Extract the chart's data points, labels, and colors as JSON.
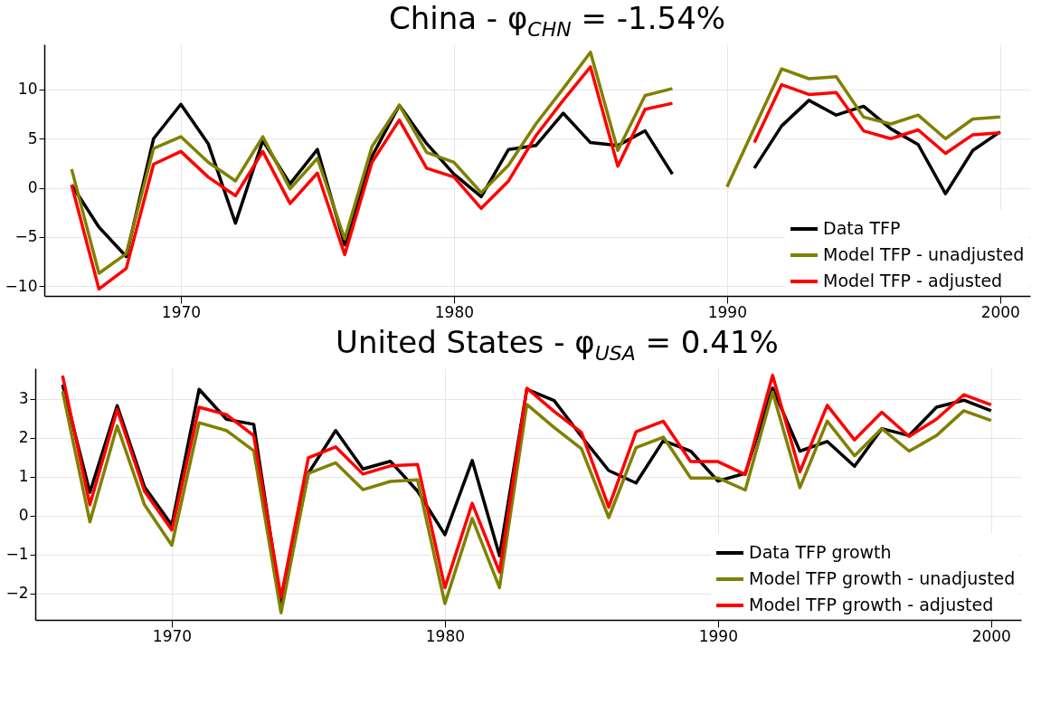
{
  "chart_data": [
    {
      "type": "line",
      "title": "China - φ$_{CHN}$ = -1.54%",
      "x": [
        1966,
        1967,
        1968,
        1969,
        1970,
        1971,
        1972,
        1973,
        1974,
        1975,
        1976,
        1977,
        1978,
        1979,
        1980,
        1981,
        1982,
        1983,
        1984,
        1985,
        1986,
        1987,
        1988,
        1989,
        1990,
        1991,
        1992,
        1993,
        1994,
        1995,
        1996,
        1997,
        1998,
        1999,
        2000
      ],
      "series": [
        {
          "name": "Data TFP",
          "color": "#000000",
          "values": [
            0.3,
            -4.0,
            -7.0,
            5.0,
            8.5,
            4.5,
            -3.6,
            4.8,
            0.4,
            3.9,
            -5.8,
            3.2,
            8.4,
            4.5,
            1.4,
            -0.9,
            3.9,
            4.3,
            7.6,
            4.6,
            4.3,
            5.8,
            1.4,
            null,
            null,
            2.0,
            6.3,
            8.9,
            7.4,
            8.3,
            6.0,
            4.4,
            -0.6,
            3.8,
            5.7
          ]
        },
        {
          "name": "Model TFP - unadjusted",
          "color": "#808000",
          "values": [
            1.9,
            -8.7,
            -6.7,
            4.0,
            5.2,
            2.6,
            0.7,
            5.2,
            -0.1,
            3.0,
            -5.2,
            4.2,
            8.4,
            3.6,
            2.6,
            -0.5,
            2.3,
            6.5,
            10.1,
            13.8,
            3.8,
            9.4,
            10.1,
            null,
            0.1,
            6.1,
            12.1,
            11.1,
            11.3,
            7.2,
            6.5,
            7.4,
            5.0,
            7.0,
            7.2
          ]
        },
        {
          "name": "Model TFP - adjusted",
          "color": "#ff0000",
          "values": [
            0.3,
            -10.3,
            -8.2,
            2.4,
            3.7,
            1.1,
            -0.8,
            3.7,
            -1.6,
            1.5,
            -6.8,
            2.6,
            6.9,
            2.0,
            1.1,
            -2.1,
            0.7,
            5.3,
            8.9,
            12.3,
            2.2,
            8.0,
            8.6,
            null,
            null,
            4.6,
            10.5,
            9.5,
            9.7,
            5.8,
            5.0,
            5.9,
            3.5,
            5.4,
            5.6
          ]
        }
      ],
      "xlim": [
        1965,
        2001.1
      ],
      "xticks": [
        1970,
        1980,
        1990,
        2000
      ],
      "ylim": [
        -11,
        14.6
      ],
      "yticks": [
        -10,
        -5,
        0,
        5,
        10
      ],
      "grid": true,
      "legend": "bottom right"
    },
    {
      "type": "line",
      "title": "United States - φ$_{USA}$ = 0.41%",
      "x": [
        1966,
        1967,
        1968,
        1969,
        1970,
        1971,
        1972,
        1973,
        1974,
        1975,
        1976,
        1977,
        1978,
        1979,
        1980,
        1981,
        1982,
        1983,
        1984,
        1985,
        1986,
        1987,
        1988,
        1989,
        1990,
        1991,
        1992,
        1993,
        1994,
        1995,
        1996,
        1997,
        1998,
        1999,
        2000
      ],
      "series": [
        {
          "name": "Data TFP growth",
          "color": "#000000",
          "values": [
            3.37,
            0.6,
            2.83,
            0.74,
            -0.24,
            3.25,
            2.48,
            2.35,
            -2.28,
            1.09,
            2.19,
            1.2,
            1.4,
            0.63,
            -0.49,
            1.42,
            -1.03,
            3.25,
            2.96,
            2.04,
            1.16,
            0.84,
            1.93,
            1.66,
            0.89,
            1.09,
            3.28,
            1.66,
            1.91,
            1.27,
            2.24,
            2.06,
            2.79,
            2.97,
            2.7
          ]
        },
        {
          "name": "Model TFP growth - unadjusted",
          "color": "#808000",
          "values": [
            3.2,
            -0.16,
            2.31,
            0.28,
            -0.76,
            2.39,
            2.19,
            1.67,
            -2.5,
            1.09,
            1.36,
            0.67,
            0.88,
            0.92,
            -2.26,
            -0.07,
            -1.85,
            2.86,
            2.27,
            1.72,
            -0.05,
            1.75,
            2.02,
            0.97,
            0.97,
            0.66,
            3.18,
            0.72,
            2.43,
            1.54,
            2.24,
            1.66,
            2.06,
            2.7,
            2.45
          ]
        },
        {
          "name": "Model TFP growth - adjusted",
          "color": "#ff0000",
          "values": [
            3.6,
            0.28,
            2.73,
            0.63,
            -0.37,
            2.79,
            2.6,
            2.06,
            -2.1,
            1.49,
            1.77,
            1.07,
            1.28,
            1.32,
            -1.85,
            0.32,
            -1.45,
            3.28,
            2.68,
            2.14,
            0.22,
            2.16,
            2.43,
            1.39,
            1.39,
            1.06,
            3.61,
            1.13,
            2.84,
            1.95,
            2.66,
            2.04,
            2.48,
            3.11,
            2.85
          ]
        }
      ],
      "xlim": [
        1965,
        2001.1
      ],
      "xticks": [
        1970,
        1980,
        1990,
        2000
      ],
      "ylim": [
        -2.68,
        3.79
      ],
      "yticks": [
        -2,
        -1,
        0,
        1,
        2,
        3
      ],
      "grid": true,
      "legend": "bottom right"
    }
  ]
}
